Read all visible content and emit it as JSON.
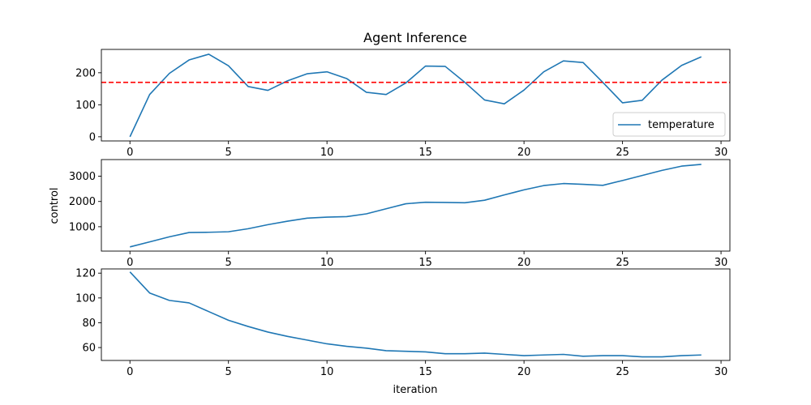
{
  "chart_data": [
    {
      "type": "line",
      "title": "Agent Inference",
      "xlabel": "",
      "ylabel": "",
      "xlim": [
        -1.45,
        30.45
      ],
      "ylim": [
        -13,
        273
      ],
      "xticks": [
        0,
        5,
        10,
        15,
        20,
        25,
        30
      ],
      "yticks": [
        0,
        100,
        200
      ],
      "legend": "lower-right",
      "reference_line": {
        "y": 170,
        "color": "#ff0000",
        "style": "dashed"
      },
      "series": [
        {
          "name": "temperature",
          "color": "#1f77b4",
          "x": [
            0,
            1,
            2,
            3,
            4,
            5,
            6,
            7,
            8,
            9,
            10,
            11,
            12,
            13,
            14,
            15,
            16,
            17,
            18,
            19,
            20,
            21,
            22,
            23,
            24,
            25,
            26,
            27,
            28,
            29
          ],
          "y": [
            0,
            132,
            198,
            240,
            258,
            222,
            157,
            145,
            175,
            197,
            203,
            182,
            139,
            132,
            168,
            221,
            220,
            170,
            115,
            103,
            146,
            203,
            237,
            232,
            170,
            106,
            114,
            177,
            223,
            250
          ]
        }
      ]
    },
    {
      "type": "line",
      "title": "",
      "xlabel": "",
      "ylabel": "control",
      "xlim": [
        -1.45,
        30.45
      ],
      "ylim": [
        34,
        3660
      ],
      "xticks": [
        0,
        5,
        10,
        15,
        20,
        25,
        30
      ],
      "yticks": [
        1000,
        2000,
        3000
      ],
      "series": [
        {
          "color": "#1f77b4",
          "x": [
            0,
            1,
            2,
            3,
            4,
            5,
            6,
            7,
            8,
            9,
            10,
            11,
            12,
            13,
            14,
            15,
            16,
            17,
            18,
            19,
            20,
            21,
            22,
            23,
            24,
            25,
            26,
            27,
            28,
            29
          ],
          "y": [
            200,
            400,
            600,
            770,
            780,
            800,
            920,
            1080,
            1220,
            1340,
            1380,
            1400,
            1510,
            1710,
            1910,
            1970,
            1960,
            1950,
            2050,
            2260,
            2460,
            2630,
            2710,
            2680,
            2640,
            2830,
            3030,
            3230,
            3400,
            3470
          ]
        }
      ]
    },
    {
      "type": "line",
      "title": "",
      "xlabel": "iteration",
      "ylabel": "",
      "xlim": [
        -1.45,
        30.45
      ],
      "ylim": [
        49.6,
        123.4
      ],
      "xticks": [
        0,
        5,
        10,
        15,
        20,
        25,
        30
      ],
      "yticks": [
        60,
        80,
        100,
        120
      ],
      "series": [
        {
          "color": "#1f77b4",
          "x": [
            0,
            1,
            2,
            3,
            4,
            5,
            6,
            7,
            8,
            9,
            10,
            11,
            12,
            13,
            14,
            15,
            16,
            17,
            18,
            19,
            20,
            21,
            22,
            23,
            24,
            25,
            26,
            27,
            28,
            29
          ],
          "y": [
            121,
            104,
            98,
            96,
            89,
            82,
            77,
            72.5,
            69,
            66,
            63,
            61,
            59.5,
            57.5,
            57,
            56.5,
            55,
            55,
            55.5,
            54.5,
            53.5,
            54,
            54.5,
            53,
            53.5,
            53.5,
            52.5,
            52.5,
            53.5,
            54
          ]
        }
      ]
    }
  ]
}
